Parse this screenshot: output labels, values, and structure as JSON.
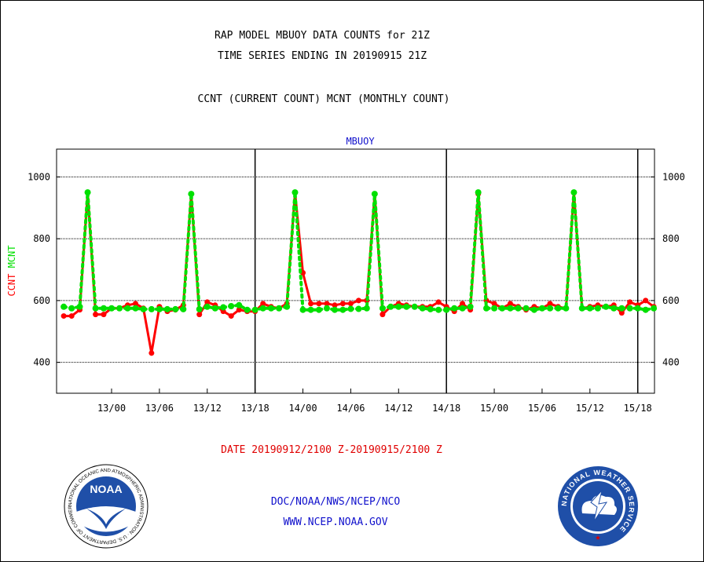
{
  "titles": {
    "line1": "RAP MODEL MBUOY DATA COUNTS for 21Z",
    "line2": "TIME SERIES ENDING IN 20190915 21Z",
    "line3": "CCNT (CURRENT COUNT) MCNT (MONTHLY COUNT)"
  },
  "date_range": "DATE 20190912/2100 Z-20190915/2100 Z",
  "footer": {
    "line1": "DOC/NOAA/NWS/NCEP/NCO",
    "line2": "WWW.NCEP.NOAA.GOV"
  },
  "logos": {
    "noaa": {
      "text": "NOAA",
      "ring_text": "NATIONAL OCEANIC AND ATMOSPHERIC ADMINISTRATION · U.S. DEPARTMENT OF COMMERCE"
    },
    "nws": {
      "ring_text": "NATIONAL WEATHER SERVICE"
    }
  },
  "colors": {
    "ccnt": "#ff0000",
    "mcnt": "#00e000",
    "title_blue": "#1010cc",
    "date_red": "#e00000"
  },
  "chart_data": {
    "type": "line",
    "title": "MBUOY",
    "ylabel_parts": [
      "CCNT",
      "MCNT"
    ],
    "ylim": [
      300,
      1090
    ],
    "yticks": [
      400,
      600,
      800,
      1000
    ],
    "xlim": [
      -1.3,
      23.7
    ],
    "xticks": [
      {
        "x": 1,
        "label": "13/00"
      },
      {
        "x": 3,
        "label": "13/06"
      },
      {
        "x": 5,
        "label": "13/12"
      },
      {
        "x": 7,
        "label": "13/18"
      },
      {
        "x": 9,
        "label": "14/00"
      },
      {
        "x": 11,
        "label": "14/06"
      },
      {
        "x": 13,
        "label": "14/12"
      },
      {
        "x": 15,
        "label": "14/18"
      },
      {
        "x": 17,
        "label": "15/00"
      },
      {
        "x": 19,
        "label": "15/06"
      },
      {
        "x": 21,
        "label": "15/12"
      },
      {
        "x": 23,
        "label": "15/18"
      }
    ],
    "day_boundaries": [
      7,
      15,
      23
    ],
    "grid": true,
    "x": [
      -1,
      -0.67,
      -0.33,
      0,
      0.33,
      0.67,
      1,
      1.33,
      1.67,
      2,
      2.33,
      2.67,
      3,
      3.33,
      3.67,
      4,
      4.33,
      4.67,
      5,
      5.33,
      5.67,
      6,
      6.33,
      6.67,
      7,
      7.33,
      7.67,
      8,
      8.33,
      8.67,
      9,
      9.33,
      9.67,
      10,
      10.33,
      10.67,
      11,
      11.33,
      11.67,
      12,
      12.33,
      12.67,
      13,
      13.33,
      13.67,
      14,
      14.33,
      14.67,
      15,
      15.33,
      15.67,
      16,
      16.33,
      16.67,
      17,
      17.33,
      17.67,
      18,
      18.33,
      18.67,
      19,
      19.33,
      19.67,
      20,
      20.33,
      20.67,
      21,
      21.33,
      21.67,
      22,
      22.33,
      22.67,
      23,
      23.33,
      23.67
    ],
    "series": [
      {
        "name": "CCNT",
        "values": [
          550,
          550,
          570,
          950,
          555,
          555,
          575,
          575,
          585,
          590,
          575,
          430,
          580,
          565,
          570,
          585,
          945,
          555,
          595,
          585,
          565,
          550,
          570,
          565,
          565,
          590,
          580,
          575,
          590,
          950,
          690,
          590,
          590,
          590,
          585,
          590,
          590,
          600,
          600,
          945,
          555,
          580,
          590,
          585,
          580,
          580,
          580,
          595,
          580,
          565,
          590,
          570,
          945,
          600,
          590,
          575,
          590,
          580,
          570,
          580,
          575,
          590,
          580,
          575,
          950,
          575,
          580,
          585,
          580,
          585,
          560,
          595,
          585,
          600,
          580
        ]
      },
      {
        "name": "MCNT",
        "values": [
          580,
          575,
          580,
          950,
          575,
          575,
          575,
          575,
          575,
          575,
          572,
          572,
          572,
          572,
          572,
          572,
          945,
          572,
          580,
          575,
          578,
          582,
          585,
          570,
          570,
          575,
          575,
          575,
          580,
          950,
          570,
          570,
          570,
          575,
          570,
          570,
          573,
          573,
          575,
          945,
          575,
          580,
          580,
          580,
          580,
          575,
          572,
          570,
          570,
          575,
          575,
          580,
          950,
          575,
          575,
          575,
          575,
          575,
          575,
          570,
          575,
          575,
          575,
          575,
          950,
          575,
          575,
          575,
          580,
          575,
          575,
          575,
          575,
          570,
          575
        ]
      }
    ]
  }
}
